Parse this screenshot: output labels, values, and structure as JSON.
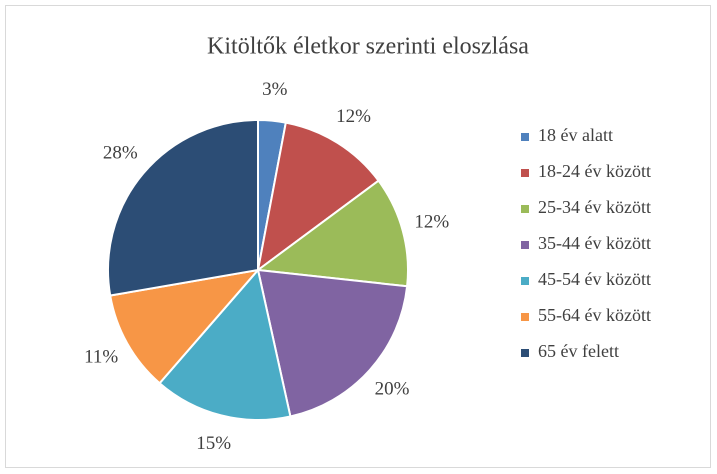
{
  "chart_data": {
    "type": "pie",
    "title": "Kitöltők életkor szerinti eloszlása",
    "categories": [
      "18 év alatt",
      "18-24 év között",
      "25-34 év között",
      "35-44 év között",
      "45-54 év között",
      "55-64 év között",
      "65 év felett"
    ],
    "values": [
      3,
      12,
      12,
      20,
      15,
      11,
      28
    ],
    "value_labels": [
      "3%",
      "12%",
      "12%",
      "20%",
      "15%",
      "11%",
      "28%"
    ],
    "colors": [
      "#4f81bd",
      "#c0504d",
      "#9bbb59",
      "#8064a2",
      "#4bacc6",
      "#f79646",
      "#2c4d75"
    ],
    "legend": "right"
  }
}
